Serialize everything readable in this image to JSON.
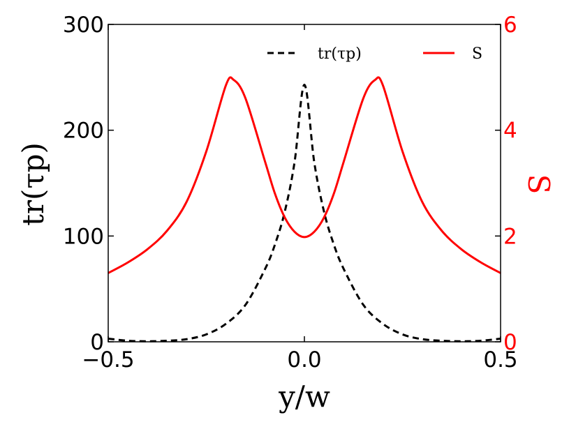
{
  "chart_data": {
    "type": "line",
    "xlabel": "y/w",
    "ylabel_left": "tr(τp)",
    "ylabel_right": "S",
    "xlim": [
      -0.5,
      0.5
    ],
    "ylim_left": [
      0,
      300
    ],
    "ylim_right": [
      0,
      6
    ],
    "x_ticks": [
      -0.5,
      0.0,
      0.5
    ],
    "x_tick_labels": [
      "−0.5",
      "0.0",
      "0.5"
    ],
    "y_left_ticks": [
      0,
      100,
      200,
      300
    ],
    "y_left_tick_labels": [
      "0",
      "100",
      "200",
      "300"
    ],
    "y_right_ticks": [
      0,
      2,
      4,
      6
    ],
    "y_right_tick_labels": [
      "0",
      "2",
      "4",
      "6"
    ],
    "grid": false,
    "legend_position": "top",
    "colors": {
      "tr": "#000000",
      "S": "#ff0000",
      "axis": "#000000"
    },
    "series": [
      {
        "name": "tr(τp)",
        "axis": "left",
        "style": "dashed",
        "x": [
          -0.5,
          -0.45,
          -0.4,
          -0.35,
          -0.3,
          -0.25,
          -0.2,
          -0.15,
          -0.1,
          -0.075,
          -0.05,
          -0.025,
          0.0,
          0.025,
          0.05,
          0.075,
          0.1,
          0.15,
          0.2,
          0.25,
          0.3,
          0.35,
          0.4,
          0.45,
          0.5
        ],
        "y": [
          3,
          1,
          0.5,
          1,
          2.5,
          7,
          17,
          35,
          69,
          92,
          123,
          170,
          243,
          170,
          123,
          92,
          69,
          35,
          17,
          7,
          2.5,
          1,
          0.5,
          1,
          3
        ]
      },
      {
        "name": "S",
        "axis": "right",
        "style": "solid",
        "x": [
          -0.5,
          -0.45,
          -0.4,
          -0.35,
          -0.3,
          -0.25,
          -0.2,
          -0.18,
          -0.15,
          -0.1,
          -0.075,
          -0.05,
          -0.025,
          0.0,
          0.025,
          0.05,
          0.075,
          0.1,
          0.15,
          0.18,
          0.2,
          0.25,
          0.3,
          0.35,
          0.4,
          0.45,
          0.5
        ],
        "y": [
          1.3,
          1.5,
          1.75,
          2.1,
          2.65,
          3.6,
          4.85,
          4.95,
          4.6,
          3.4,
          2.8,
          2.35,
          2.08,
          1.98,
          2.08,
          2.35,
          2.8,
          3.4,
          4.6,
          4.95,
          4.85,
          3.6,
          2.65,
          2.1,
          1.75,
          1.5,
          1.3
        ]
      }
    ]
  }
}
